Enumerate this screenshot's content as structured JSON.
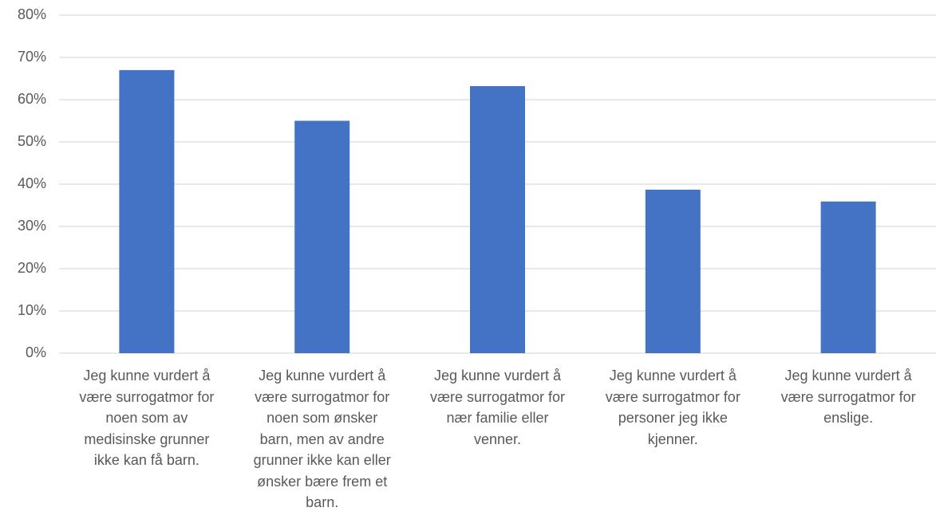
{
  "chart_data": {
    "type": "bar",
    "title": "",
    "xlabel": "",
    "ylabel": "",
    "ylim": [
      0,
      0.8
    ],
    "y_ticks": [
      "0%",
      "10%",
      "20%",
      "30%",
      "40%",
      "50%",
      "60%",
      "70%",
      "80%"
    ],
    "grid": true,
    "legend": "none",
    "bar_color": "#4472C4",
    "gridline_color": "#D9D9D9",
    "categories": [
      "Jeg kunne vurdert å være surrogatmor for noen som av medisinske grunner ikke kan få barn.",
      "Jeg kunne vurdert å være surrogatmor for noen som ønsker barn, men av andre grunner ikke kan eller ønsker bære frem et barn.",
      "Jeg kunne vurdert å være surrogatmor for nær familie eller venner.",
      "Jeg kunne vurdert å være surrogatmor for personer jeg ikke kjenner.",
      "Jeg kunne vurdert å være surrogatmor for enslige."
    ],
    "category_lines": [
      [
        "Jeg kunne vurdert å",
        "være surrogatmor for",
        "noen som av",
        "medisinske grunner",
        "ikke kan få barn."
      ],
      [
        "Jeg kunne vurdert å",
        "være surrogatmor for",
        "noen som ønsker",
        "barn, men av andre",
        "grunner ikke kan eller",
        "ønsker bære frem et",
        "barn."
      ],
      [
        "Jeg kunne vurdert å",
        "være surrogatmor for",
        "nær familie eller",
        "venner."
      ],
      [
        "Jeg kunne vurdert å",
        "være surrogatmor for",
        "personer jeg ikke",
        "kjenner."
      ],
      [
        "Jeg kunne vurdert å",
        "være surrogatmor for",
        "enslige."
      ]
    ],
    "values": [
      0.67,
      0.55,
      0.632,
      0.387,
      0.359
    ]
  }
}
